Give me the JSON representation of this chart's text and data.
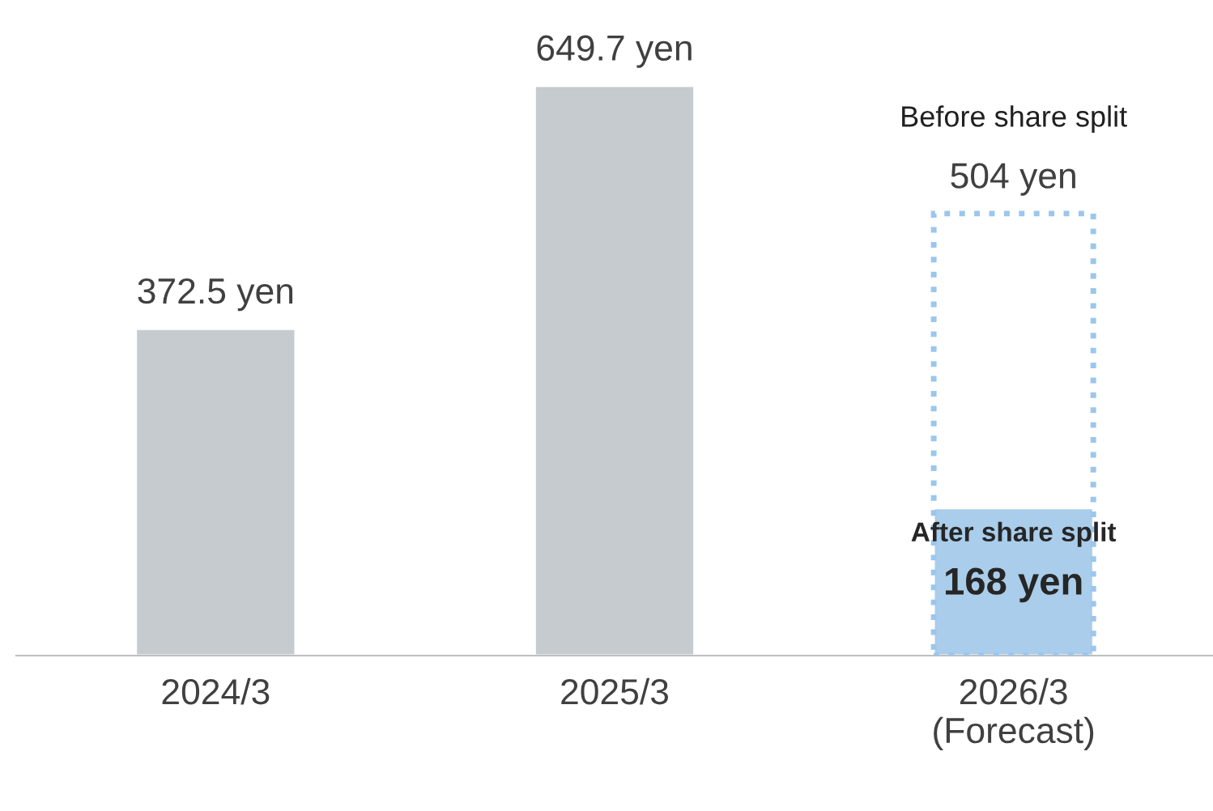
{
  "chart_data": {
    "type": "bar",
    "categories": [
      "2024/3",
      "2025/3",
      "2026/3\n(Forecast)"
    ],
    "tick_labels": "x",
    "grid": false,
    "legend": false,
    "series": [
      {
        "color": "#c5cbcf",
        "values": [
          372.5,
          649.7,
          null
        ],
        "value_labels": [
          "372.5 yen",
          "649.7 yen",
          null
        ]
      },
      {
        "name": "Before share split",
        "color": "#9cc6ec",
        "line_style": "dotted",
        "values": [
          null,
          null,
          504
        ],
        "value_labels": [
          null,
          null,
          "504 yen"
        ]
      },
      {
        "name": "After share split",
        "color": "#a9cdea",
        "values": [
          null,
          null,
          168
        ],
        "value_labels": [
          null,
          null,
          "168 yen"
        ]
      }
    ]
  }
}
